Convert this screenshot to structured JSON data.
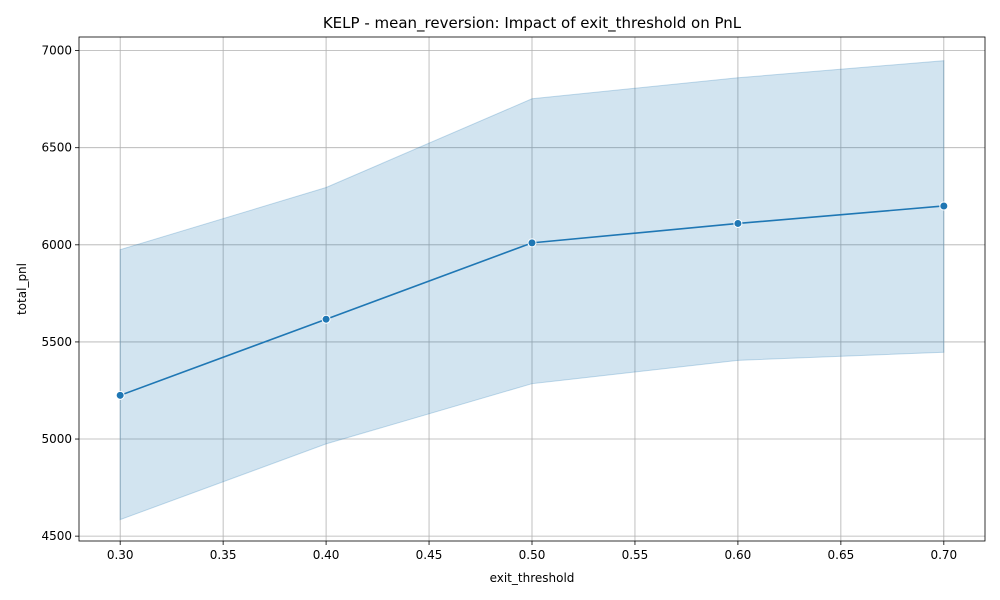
{
  "chart_data": {
    "type": "line",
    "title": "KELP - mean_reversion: Impact of exit_threshold on PnL",
    "xlabel": "exit_threshold",
    "ylabel": "total_pnl",
    "x": [
      0.3,
      0.4,
      0.5,
      0.6,
      0.7
    ],
    "series": [
      {
        "values": [
          5225,
          5617,
          6010,
          6110,
          6200
        ],
        "band_upper": [
          5975,
          6295,
          6752,
          6860,
          6948
        ],
        "band_lower": [
          4585,
          4975,
          5285,
          5405,
          5447
        ],
        "color": "#1f77b4"
      }
    ],
    "xticks": [
      "0.30",
      "0.35",
      "0.40",
      "0.45",
      "0.50",
      "0.55",
      "0.60",
      "0.65",
      "0.70"
    ],
    "yticks": [
      "4500",
      "5000",
      "5500",
      "6000",
      "6500",
      "7000"
    ],
    "xlim": [
      0.28,
      0.72
    ],
    "ylim": [
      4475,
      7070
    ],
    "grid": true,
    "band_color": "#1f77b4"
  }
}
